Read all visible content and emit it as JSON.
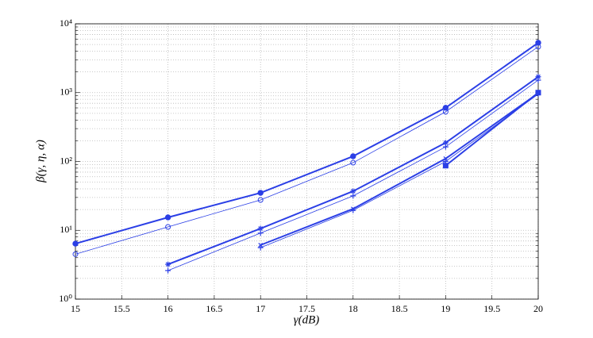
{
  "chart_data": {
    "type": "line",
    "x_label": "γ(dB)",
    "y_label": "β(γ, η, α)",
    "x": [
      15,
      16,
      17,
      18,
      19,
      20
    ],
    "xlim": [
      15,
      20
    ],
    "xticks": [
      15,
      15.5,
      16,
      16.5,
      17,
      17.5,
      18,
      18.5,
      19,
      19.5,
      20
    ],
    "ylim": [
      1,
      10000
    ],
    "y_scale": "log",
    "yticks": [
      {
        "value": 1,
        "label": "10⁰"
      },
      {
        "value": 10,
        "label": "10¹"
      },
      {
        "value": 100,
        "label": "10²"
      },
      {
        "value": 1000,
        "label": "10³"
      },
      {
        "value": 10000,
        "label": "10⁴"
      }
    ],
    "grid": true,
    "series": [
      {
        "color": "#2b3fe6",
        "marker": "filled-circle",
        "line_width": 2,
        "values": [
          6.4,
          15.4,
          35,
          119,
          603,
          5300
        ]
      },
      {
        "color": "#2b3fe6",
        "marker": "open-circle",
        "line_width": 0.8,
        "values": [
          4.5,
          11.2,
          27.6,
          96,
          527,
          4650
        ]
      },
      {
        "color": "#2b3fe6",
        "marker": "star",
        "line_width": 2,
        "values": [
          null,
          3.2,
          10.6,
          37,
          187,
          1700
        ]
      },
      {
        "color": "#2b3fe6",
        "marker": "plus",
        "line_width": 0.8,
        "values": [
          null,
          2.6,
          9.1,
          31.6,
          163,
          1520
        ]
      },
      {
        "color": "#2b3fe6",
        "marker": "cross",
        "line_width": 2,
        "values": [
          null,
          null,
          6.1,
          20.5,
          110,
          980
        ]
      },
      {
        "color": "#2b3fe6",
        "marker": "plus",
        "line_width": 0.8,
        "values": [
          null,
          null,
          5.6,
          19.5,
          100,
          950
        ]
      },
      {
        "color": "#2b3fe6",
        "marker": "square",
        "line_width": 2,
        "values": [
          null,
          null,
          null,
          null,
          87,
          1000
        ]
      }
    ]
  }
}
